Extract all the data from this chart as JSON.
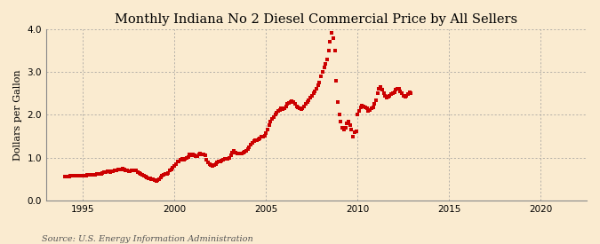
{
  "title": "Monthly Indiana No 2 Diesel Commercial Price by All Sellers",
  "ylabel": "Dollars per Gallon",
  "source_text": "Source: U.S. Energy Information Administration",
  "background_color": "#faebd0",
  "dot_color": "#cc0000",
  "xlim": [
    1993.0,
    2022.5
  ],
  "ylim": [
    0.0,
    4.0
  ],
  "yticks": [
    0.0,
    1.0,
    2.0,
    3.0,
    4.0
  ],
  "xticks": [
    1995,
    2000,
    2005,
    2010,
    2015,
    2020
  ],
  "grid_color": "#999999",
  "title_fontsize": 10.5,
  "label_fontsize": 8,
  "tick_fontsize": 7.5,
  "source_fontsize": 7,
  "dot_size": 6,
  "monthly_data": [
    0.55,
    0.55,
    0.56,
    0.56,
    0.57,
    0.57,
    0.57,
    0.57,
    0.57,
    0.57,
    0.57,
    0.57,
    0.57,
    0.58,
    0.58,
    0.59,
    0.59,
    0.6,
    0.59,
    0.6,
    0.6,
    0.61,
    0.62,
    0.62,
    0.63,
    0.65,
    0.66,
    0.67,
    0.68,
    0.68,
    0.67,
    0.68,
    0.69,
    0.7,
    0.71,
    0.72,
    0.73,
    0.73,
    0.74,
    0.72,
    0.71,
    0.7,
    0.69,
    0.69,
    0.7,
    0.71,
    0.71,
    0.71,
    0.67,
    0.65,
    0.62,
    0.6,
    0.58,
    0.55,
    0.53,
    0.52,
    0.51,
    0.5,
    0.49,
    0.48,
    0.46,
    0.47,
    0.5,
    0.53,
    0.57,
    0.6,
    0.61,
    0.62,
    0.65,
    0.7,
    0.73,
    0.76,
    0.8,
    0.85,
    0.9,
    0.92,
    0.95,
    0.97,
    0.96,
    0.97,
    0.99,
    1.02,
    1.08,
    1.05,
    1.08,
    1.05,
    1.03,
    1.04,
    1.07,
    1.09,
    1.08,
    1.07,
    1.06,
    0.95,
    0.88,
    0.85,
    0.82,
    0.8,
    0.82,
    0.85,
    0.88,
    0.9,
    0.92,
    0.94,
    0.96,
    0.98,
    0.98,
    0.97,
    1.0,
    1.05,
    1.12,
    1.15,
    1.12,
    1.1,
    1.09,
    1.09,
    1.1,
    1.12,
    1.14,
    1.16,
    1.2,
    1.25,
    1.3,
    1.35,
    1.38,
    1.4,
    1.41,
    1.42,
    1.44,
    1.48,
    1.5,
    1.52,
    1.58,
    1.65,
    1.75,
    1.85,
    1.9,
    1.95,
    2.0,
    2.05,
    2.1,
    2.12,
    2.15,
    2.13,
    2.15,
    2.2,
    2.25,
    2.28,
    2.3,
    2.32,
    2.3,
    2.25,
    2.2,
    2.18,
    2.15,
    2.13,
    2.15,
    2.2,
    2.25,
    2.3,
    2.35,
    2.4,
    2.45,
    2.5,
    2.55,
    2.6,
    2.7,
    2.75,
    2.9,
    3.0,
    3.1,
    3.2,
    3.3,
    3.5,
    3.7,
    3.92,
    3.8,
    3.5,
    2.8,
    2.3,
    2.0,
    1.85,
    1.7,
    1.65,
    1.7,
    1.8,
    1.85,
    1.75,
    1.65,
    1.48,
    1.6,
    1.62,
    2.0,
    2.1,
    2.18,
    2.22,
    2.2,
    2.18,
    2.15,
    2.1,
    2.12,
    2.15,
    2.18,
    2.25,
    2.35,
    2.5,
    2.6,
    2.65,
    2.58,
    2.5,
    2.45,
    2.4,
    2.42,
    2.45,
    2.48,
    2.5,
    2.52,
    2.58,
    2.62,
    2.6,
    2.55,
    2.5,
    2.45,
    2.42,
    2.45,
    2.48,
    2.52,
    2.5
  ],
  "start_year": 1994
}
